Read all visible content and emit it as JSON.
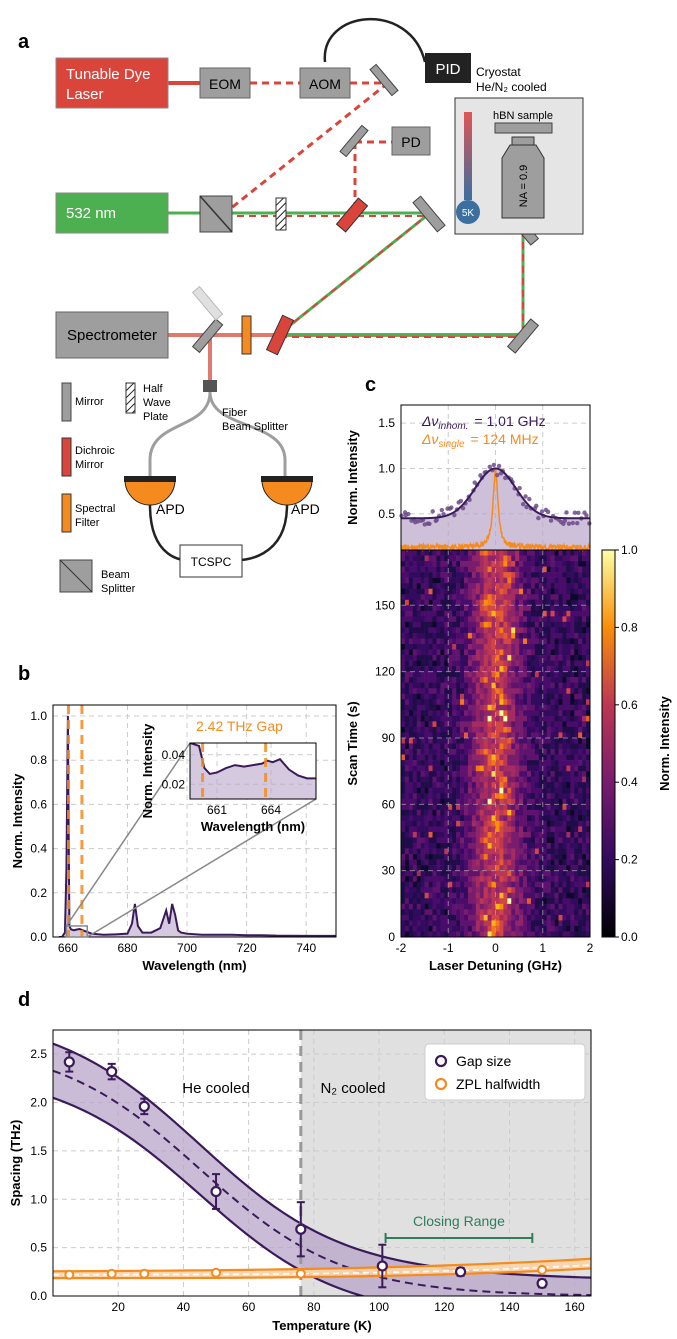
{
  "panels": {
    "a": "a",
    "b": "b",
    "c": "c",
    "d": "d"
  },
  "setup": {
    "laser": "Tunable Dye Laser",
    "laser_line1": "Tunable Dye",
    "laser_line2": "Laser",
    "eom": "EOM",
    "aom": "AOM",
    "pid": "PID",
    "pd": "PD",
    "green_laser": "532 nm",
    "spectrometer": "Spectrometer",
    "cryostat_line1": "Cryostat",
    "cryostat_line2": "He/N₂ cooled",
    "sample": "hBN sample",
    "na": "NA = 0.9",
    "temp": "5K",
    "fiber_line1": "Fiber",
    "fiber_line2": "Beam Splitter",
    "apd": "APD",
    "tcspc": "TCSPC",
    "legend": {
      "mirror": "Mirror",
      "halfwave_1": "Half",
      "halfwave_2": "Wave",
      "halfwave_3": "Plate",
      "dichroic_1": "Dichroic",
      "dichroic_2": "Mirror",
      "filter_1": "Spectral",
      "filter_2": "Filter",
      "bs_1": "Beam",
      "bs_2": "Splitter"
    }
  },
  "colors": {
    "red": "#d9453b",
    "red_dash": "#d9453b",
    "green": "#4caf50",
    "gray": "#9e9e9e",
    "purple": "#3b1a5a",
    "orange": "#f58b1f",
    "fill": "#b8a5c8"
  },
  "chart_data": [
    {
      "id": "b",
      "type": "line",
      "xlabel": "Wavelength (nm)",
      "ylabel": "Norm. Intensity",
      "xlim": [
        655,
        750
      ],
      "ylim": [
        0,
        1.05
      ],
      "xticks": [
        660,
        680,
        700,
        720,
        740
      ],
      "yticks": [
        0.0,
        0.2,
        0.4,
        0.6,
        0.8,
        1.0
      ],
      "annotation": "2.42 THz Gap",
      "gap_lines_nm": [
        660.2,
        663.7
      ],
      "spectrum": {
        "x": [
          657,
          658,
          659,
          659.5,
          660,
          660.2,
          660.5,
          661,
          662,
          663,
          664,
          665,
          668,
          672,
          676,
          680,
          681.5,
          682.5,
          683.5,
          685,
          688,
          691,
          693,
          694,
          695,
          696,
          697,
          698,
          700,
          705,
          710,
          715,
          720,
          725,
          730,
          740,
          750
        ],
        "y": [
          0.0,
          0.0,
          0.02,
          0.3,
          1.0,
          0.6,
          0.05,
          0.035,
          0.03,
          0.034,
          0.036,
          0.03,
          0.015,
          0.01,
          0.012,
          0.015,
          0.06,
          0.15,
          0.05,
          0.02,
          0.02,
          0.04,
          0.12,
          0.06,
          0.15,
          0.1,
          0.03,
          0.02,
          0.015,
          0.01,
          0.01,
          0.01,
          0.008,
          0.008,
          0.006,
          0.005,
          0.005
        ]
      },
      "inset": {
        "xlabel": "Wavelength (nm)",
        "ylabel": "Norm. Intensity",
        "xlim": [
          659.5,
          666.5
        ],
        "ylim": [
          0.01,
          0.048
        ],
        "xticks": [
          661,
          664
        ],
        "yticks": [
          0.02,
          0.04
        ],
        "x": [
          659.5,
          660.0,
          660.3,
          660.6,
          661.0,
          661.5,
          662.0,
          662.5,
          663.0,
          663.5,
          663.8,
          664.1,
          664.5,
          665.0,
          665.5,
          666.0,
          666.5
        ],
        "y": [
          0.048,
          0.046,
          0.031,
          0.027,
          0.028,
          0.031,
          0.033,
          0.032,
          0.033,
          0.034,
          0.036,
          0.035,
          0.037,
          0.03,
          0.026,
          0.024,
          0.024
        ]
      }
    },
    {
      "id": "c",
      "type": "heatmap",
      "top": {
        "ylabel": "Norm. Intensity",
        "yticks": [
          0.5,
          1.0,
          1.5
        ],
        "ylim": [
          0.1,
          1.7
        ],
        "label_inhom": "Δν",
        "label_inhom_sub": "inhom.",
        "label_inhom_value": "= 1.01 GHz",
        "label_single": "Δν",
        "label_single_sub": "single",
        "label_single_value": "= 124 MHz",
        "inhom_fwhm_ghz": 1.01,
        "single_fwhm_ghz": 0.124,
        "baseline": 0.45
      },
      "xlabel": "Laser Detuning (GHz)",
      "ylabel": "Scan Time (s)",
      "xlim": [
        -2,
        2
      ],
      "ylim": [
        0,
        175
      ],
      "xticks": [
        -2,
        -1,
        0,
        1,
        2
      ],
      "yticks": [
        0,
        30,
        60,
        90,
        120,
        150
      ],
      "colorbar": {
        "label": "Norm. Intensity",
        "ticks": [
          0.0,
          0.2,
          0.4,
          0.6,
          0.8,
          1.0
        ]
      }
    },
    {
      "id": "d",
      "type": "scatter",
      "xlabel": "Temperature (K)",
      "ylabel": "Spacing (THz)",
      "xlim": [
        0,
        165
      ],
      "ylim": [
        0,
        2.75
      ],
      "xticks": [
        20,
        40,
        60,
        80,
        100,
        120,
        140,
        160
      ],
      "yticks": [
        0.0,
        0.5,
        1.0,
        1.5,
        2.0,
        2.5
      ],
      "he_label": "He cooled",
      "n2_label": "N₂ cooled",
      "transition_k": 76,
      "closing_label": "Closing Range",
      "closing_range_k": [
        102,
        147
      ],
      "closing_y": 0.6,
      "legend": [
        "Gap size",
        "ZPL halfwidth"
      ],
      "gap": {
        "x": [
          5,
          18,
          28,
          50,
          76,
          101,
          125,
          150
        ],
        "y": [
          2.42,
          2.32,
          1.96,
          1.08,
          0.69,
          0.31,
          0.25,
          0.13
        ],
        "err": [
          0.1,
          0.08,
          0.08,
          0.18,
          0.28,
          0.22,
          0.04,
          0.04
        ]
      },
      "zpl": {
        "x": [
          5,
          18,
          28,
          50,
          76,
          101,
          125,
          150
        ],
        "y": [
          0.22,
          0.23,
          0.23,
          0.24,
          0.23,
          0.24,
          0.25,
          0.27
        ]
      }
    }
  ]
}
